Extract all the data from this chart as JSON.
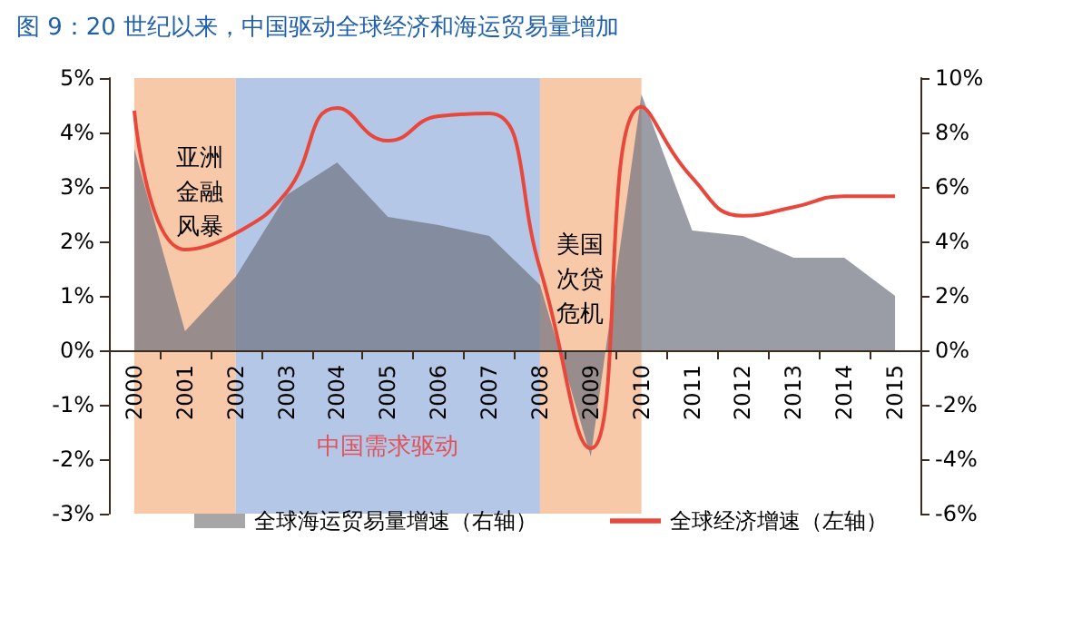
{
  "chart_data": {
    "type": "line",
    "title": "图 9：20 世纪以来，中国驱动全球经济和海运贸易量增加",
    "categories": [
      "2000",
      "2001",
      "2002",
      "2003",
      "2004",
      "2005",
      "2006",
      "2007",
      "2008",
      "2009",
      "2010",
      "2011",
      "2012",
      "2013",
      "2014",
      "2015"
    ],
    "series": [
      {
        "name": "全球海运贸易量增速（右轴）",
        "type": "area",
        "axis": "y2",
        "color": "#a6a6a6",
        "values": [
          7.4,
          0.7,
          2.7,
          5.7,
          6.9,
          4.9,
          4.6,
          4.2,
          2.4,
          -3.9,
          9.4,
          4.4,
          4.2,
          3.4,
          3.4,
          2.0
        ]
      },
      {
        "name": "全球经济增速（左轴）",
        "color": "#e8483c",
        "values": [
          4.4,
          1.85,
          2.15,
          2.9,
          4.45,
          3.85,
          4.3,
          4.35,
          1.5,
          -1.8,
          4.47,
          3.17,
          2.47,
          2.63,
          2.83,
          2.83
        ]
      }
    ],
    "ylim": [
      -3,
      5
    ],
    "yticks": [
      {
        "value": -3,
        "label": "-3%"
      },
      {
        "value": -2,
        "label": "-2%"
      },
      {
        "value": -1,
        "label": "-1%"
      },
      {
        "value": 0,
        "label": "0%"
      },
      {
        "value": 1,
        "label": "1%"
      },
      {
        "value": 2,
        "label": "2%"
      },
      {
        "value": 3,
        "label": "3%"
      },
      {
        "value": 4,
        "label": "4%"
      },
      {
        "value": 5,
        "label": "5%"
      }
    ],
    "y2lim": [
      -6,
      10
    ],
    "y2ticks": [
      {
        "value": -6,
        "label": "-6%"
      },
      {
        "value": -4,
        "label": "-4%"
      },
      {
        "value": -2,
        "label": "-2%"
      },
      {
        "value": 0,
        "label": "0%"
      },
      {
        "value": 2,
        "label": "2%"
      },
      {
        "value": 4,
        "label": "4%"
      },
      {
        "value": 6,
        "label": "6%"
      },
      {
        "value": 8,
        "label": "8%"
      },
      {
        "value": 10,
        "label": "10%"
      }
    ],
    "bands": [
      {
        "axis": "x",
        "from": "2000",
        "to": "2002",
        "label": "亚洲金融风暴",
        "color": "#f8c9a8"
      },
      {
        "axis": "x",
        "from": "2002",
        "to": "2008",
        "label": "中国需求驱动",
        "color": "#b4c7e7"
      },
      {
        "axis": "x",
        "from": "2008",
        "to": "2010",
        "label": "美国次贷危机",
        "color": "#f8c9a8"
      }
    ],
    "legend": "bottom",
    "grid": false,
    "marker": "none"
  }
}
